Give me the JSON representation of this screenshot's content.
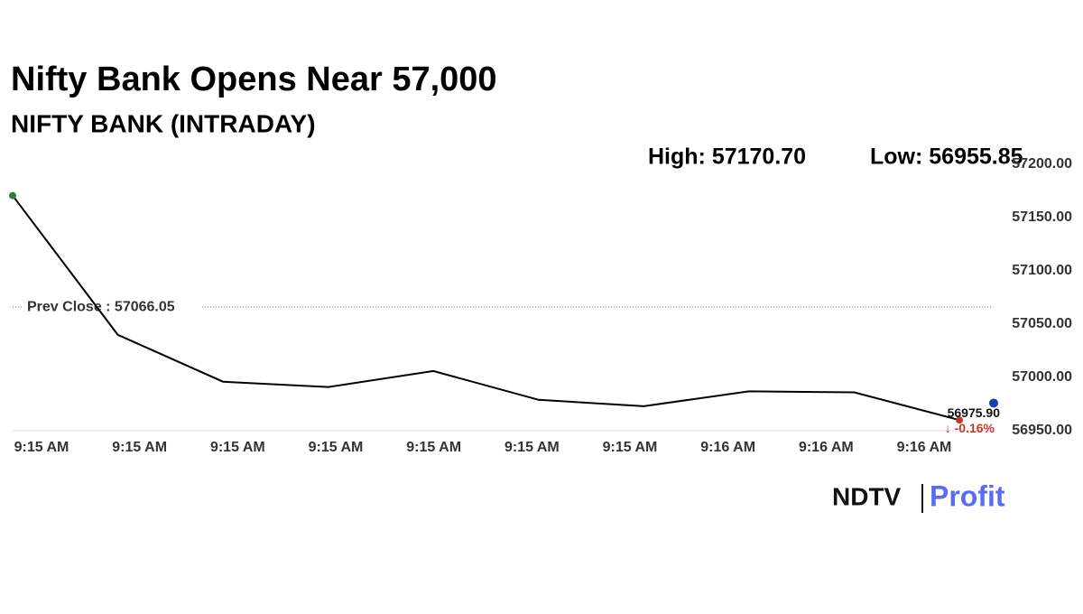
{
  "chart_data": {
    "type": "line",
    "title": "Nifty Bank Opens Near 57,000",
    "subtitle": "NIFTY BANK (INTRADAY)",
    "high_label": "High: 57170.70",
    "low_label": "Low: 56955.85",
    "categories": [
      "9:15 AM",
      "9:15 AM",
      "9:15 AM",
      "9:15 AM",
      "9:15 AM",
      "9:15 AM",
      "9:15 AM",
      "9:16 AM",
      "9:16 AM",
      "9:16 AM"
    ],
    "series": [
      {
        "name": "NIFTY BANK",
        "color": "#000000",
        "values": [
          57170.7,
          57040,
          56996,
          56991,
          57006,
          56979,
          56973,
          56987,
          56986,
          56960
        ]
      }
    ],
    "prev_close": {
      "value": 57066.05,
      "label": "Prev Close : 57066.05"
    },
    "last_price": {
      "value": 56975.9,
      "label": "56975.90"
    },
    "change_label": "↓ -0.16%",
    "ylim": [
      56950,
      57200
    ],
    "yticks": [
      {
        "value": 56950,
        "label": "56950.00"
      },
      {
        "value": 57000,
        "label": "57000.00"
      },
      {
        "value": 57050,
        "label": "57050.00"
      },
      {
        "value": 57100,
        "label": "57100.00"
      },
      {
        "value": 57150,
        "label": "57150.00"
      },
      {
        "value": 57200,
        "label": "57200.00"
      }
    ],
    "logo": [
      "NDTV",
      "Profit"
    ]
  }
}
